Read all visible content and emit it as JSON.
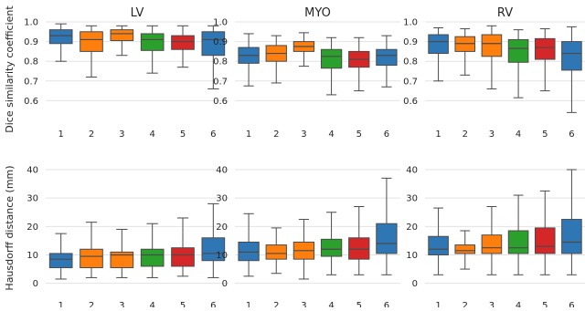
{
  "chart_data": [
    {
      "type": "box",
      "title": "LV",
      "ylabel": "Dice similarity coefficient",
      "ylim": [
        0.5,
        1.0
      ],
      "yticks": [
        "0.6",
        "0.7",
        "0.8",
        "0.9",
        "1.0"
      ],
      "categories": [
        "1",
        "2",
        "3",
        "4",
        "5",
        "6"
      ],
      "grid": "horizontal",
      "boxes": [
        {
          "category": "1",
          "min": 0.8,
          "q1": 0.89,
          "median": 0.93,
          "q3": 0.96,
          "max": 0.99,
          "color": "#2f77b4"
        },
        {
          "category": "2",
          "min": 0.72,
          "q1": 0.85,
          "median": 0.91,
          "q3": 0.95,
          "max": 0.98,
          "color": "#ff7f0e"
        },
        {
          "category": "3",
          "min": 0.83,
          "q1": 0.905,
          "median": 0.94,
          "q3": 0.96,
          "max": 0.98,
          "color": "#ff7f0e"
        },
        {
          "category": "4",
          "min": 0.74,
          "q1": 0.855,
          "median": 0.91,
          "q3": 0.94,
          "max": 0.98,
          "color": "#2ca02c"
        },
        {
          "category": "5",
          "min": 0.77,
          "q1": 0.86,
          "median": 0.9,
          "q3": 0.93,
          "max": 0.98,
          "color": "#d62728"
        },
        {
          "category": "6",
          "min": 0.66,
          "q1": 0.83,
          "median": 0.91,
          "q3": 0.95,
          "max": 0.98,
          "color": "#2f77b4"
        }
      ]
    },
    {
      "type": "box",
      "title": "MYO",
      "ylabel": "",
      "ylim": [
        0.5,
        1.0
      ],
      "yticks": [
        "0.6",
        "0.7",
        "0.8",
        "0.9",
        "1.0"
      ],
      "categories": [
        "1",
        "2",
        "3",
        "4",
        "5",
        "6"
      ],
      "grid": "horizontal",
      "boxes": [
        {
          "category": "1",
          "min": 0.675,
          "q1": 0.79,
          "median": 0.83,
          "q3": 0.87,
          "max": 0.94,
          "color": "#2f77b4"
        },
        {
          "category": "2",
          "min": 0.69,
          "q1": 0.8,
          "median": 0.84,
          "q3": 0.88,
          "max": 0.93,
          "color": "#ff7f0e"
        },
        {
          "category": "3",
          "min": 0.775,
          "q1": 0.85,
          "median": 0.875,
          "q3": 0.9,
          "max": 0.945,
          "color": "#ff7f0e"
        },
        {
          "category": "4",
          "min": 0.63,
          "q1": 0.765,
          "median": 0.825,
          "q3": 0.86,
          "max": 0.92,
          "color": "#2ca02c"
        },
        {
          "category": "5",
          "min": 0.65,
          "q1": 0.77,
          "median": 0.81,
          "q3": 0.85,
          "max": 0.92,
          "color": "#d62728"
        },
        {
          "category": "6",
          "min": 0.67,
          "q1": 0.78,
          "median": 0.83,
          "q3": 0.86,
          "max": 0.93,
          "color": "#2f77b4"
        }
      ]
    },
    {
      "type": "box",
      "title": "RV",
      "ylabel": "",
      "ylim": [
        0.5,
        1.0
      ],
      "yticks": [
        "0.6",
        "0.7",
        "0.8",
        "0.9",
        "1.0"
      ],
      "categories": [
        "1",
        "2",
        "3",
        "4",
        "5",
        "6"
      ],
      "grid": "horizontal",
      "boxes": [
        {
          "category": "1",
          "min": 0.7,
          "q1": 0.84,
          "median": 0.9,
          "q3": 0.935,
          "max": 0.97,
          "color": "#2f77b4"
        },
        {
          "category": "2",
          "min": 0.73,
          "q1": 0.85,
          "median": 0.89,
          "q3": 0.925,
          "max": 0.965,
          "color": "#ff7f0e"
        },
        {
          "category": "3",
          "min": 0.66,
          "q1": 0.825,
          "median": 0.89,
          "q3": 0.935,
          "max": 0.98,
          "color": "#ff7f0e"
        },
        {
          "category": "4",
          "min": 0.615,
          "q1": 0.795,
          "median": 0.865,
          "q3": 0.91,
          "max": 0.96,
          "color": "#2ca02c"
        },
        {
          "category": "5",
          "min": 0.65,
          "q1": 0.81,
          "median": 0.87,
          "q3": 0.915,
          "max": 0.965,
          "color": "#d62728"
        },
        {
          "category": "6",
          "min": 0.54,
          "q1": 0.755,
          "median": 0.84,
          "q3": 0.9,
          "max": 0.975,
          "color": "#2f77b4"
        }
      ]
    },
    {
      "type": "box",
      "title": "",
      "ylabel": "Hausdorff distance (mm)",
      "ylim": [
        -3,
        40
      ],
      "yticks": [
        "0",
        "10",
        "20",
        "30",
        "40"
      ],
      "categories": [
        "1",
        "2",
        "3",
        "4",
        "5",
        "6"
      ],
      "grid": "horizontal",
      "boxes": [
        {
          "category": "1",
          "min": 1.5,
          "q1": 5.5,
          "median": 8.5,
          "q3": 10.5,
          "max": 17.5,
          "color": "#2f77b4"
        },
        {
          "category": "2",
          "min": 2.0,
          "q1": 5.5,
          "median": 9.5,
          "q3": 12.0,
          "max": 21.5,
          "color": "#ff7f0e"
        },
        {
          "category": "3",
          "min": 2.0,
          "q1": 5.5,
          "median": 10.0,
          "q3": 11.0,
          "max": 19.0,
          "color": "#ff7f0e"
        },
        {
          "category": "4",
          "min": 2.0,
          "q1": 6.0,
          "median": 10.0,
          "q3": 12.0,
          "max": 21.0,
          "color": "#2ca02c"
        },
        {
          "category": "5",
          "min": 2.5,
          "q1": 6.0,
          "median": 10.0,
          "q3": 12.5,
          "max": 23.0,
          "color": "#d62728"
        },
        {
          "category": "6",
          "min": 2.0,
          "q1": 8.0,
          "median": 10.5,
          "q3": 16.0,
          "max": 28.0,
          "color": "#2f77b4"
        }
      ]
    },
    {
      "type": "box",
      "title": "",
      "ylabel": "",
      "ylim": [
        -3,
        40
      ],
      "yticks": [
        "0",
        "10",
        "20",
        "30",
        "40"
      ],
      "categories": [
        "1",
        "2",
        "3",
        "4",
        "5",
        "6"
      ],
      "grid": "horizontal",
      "boxes": [
        {
          "category": "1",
          "min": 2.5,
          "q1": 8.0,
          "median": 11.0,
          "q3": 14.5,
          "max": 24.5,
          "color": "#2f77b4"
        },
        {
          "category": "2",
          "min": 3.5,
          "q1": 8.5,
          "median": 10.5,
          "q3": 13.5,
          "max": 19.5,
          "color": "#ff7f0e"
        },
        {
          "category": "3",
          "min": 1.5,
          "q1": 8.5,
          "median": 11.5,
          "q3": 14.5,
          "max": 22.5,
          "color": "#ff7f0e"
        },
        {
          "category": "4",
          "min": 3.0,
          "q1": 9.5,
          "median": 12.0,
          "q3": 15.5,
          "max": 25.0,
          "color": "#2ca02c"
        },
        {
          "category": "5",
          "min": 3.0,
          "q1": 8.5,
          "median": 12.0,
          "q3": 16.0,
          "max": 27.0,
          "color": "#d62728"
        },
        {
          "category": "6",
          "min": 3.0,
          "q1": 10.5,
          "median": 14.0,
          "q3": 21.0,
          "max": 37.0,
          "color": "#2f77b4"
        }
      ]
    },
    {
      "type": "box",
      "title": "",
      "ylabel": "",
      "ylim": [
        -3,
        40
      ],
      "yticks": [
        "0",
        "10",
        "20",
        "30",
        "40"
      ],
      "categories": [
        "1",
        "2",
        "3",
        "4",
        "5",
        "6"
      ],
      "grid": "horizontal",
      "boxes": [
        {
          "category": "1",
          "min": 3.0,
          "q1": 10.0,
          "median": 12.0,
          "q3": 16.5,
          "max": 26.5,
          "color": "#2f77b4"
        },
        {
          "category": "2",
          "min": 5.0,
          "q1": 10.5,
          "median": 11.5,
          "q3": 13.5,
          "max": 18.5,
          "color": "#ff7f0e"
        },
        {
          "category": "3",
          "min": 3.0,
          "q1": 10.5,
          "median": 12.5,
          "q3": 17.0,
          "max": 27.0,
          "color": "#ff7f0e"
        },
        {
          "category": "4",
          "min": 3.0,
          "q1": 10.5,
          "median": 12.5,
          "q3": 18.5,
          "max": 31.0,
          "color": "#2ca02c"
        },
        {
          "category": "5",
          "min": 3.0,
          "q1": 10.5,
          "median": 13.0,
          "q3": 19.5,
          "max": 32.5,
          "color": "#d62728"
        },
        {
          "category": "6",
          "min": 3.0,
          "q1": 10.5,
          "median": 14.5,
          "q3": 22.5,
          "max": 40.0,
          "color": "#2f77b4"
        }
      ]
    }
  ]
}
